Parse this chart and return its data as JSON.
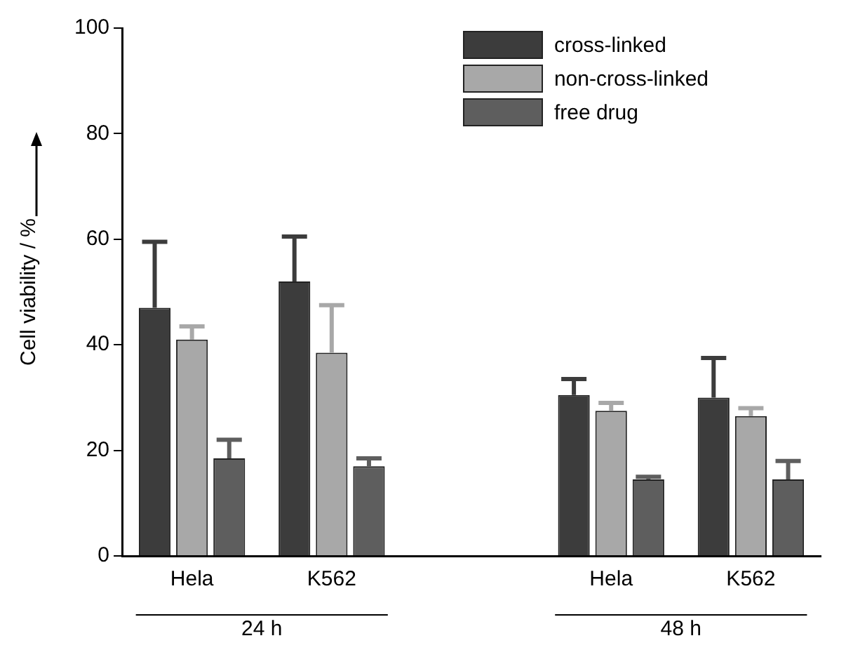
{
  "chart_data": {
    "type": "bar",
    "ylabel": "Cell viability / %",
    "categories": [
      "Hela",
      "K562",
      null,
      "Hela",
      "K562"
    ],
    "series": [
      {
        "name": "cross-linked",
        "color": "#3c3c3c",
        "values": [
          47,
          52,
          null,
          30.5,
          30
        ],
        "errors": [
          [
            47,
            59.5
          ],
          [
            52,
            60.5
          ],
          null,
          [
            30.5,
            33.5
          ],
          [
            30,
            37.5
          ]
        ]
      },
      {
        "name": "non-cross-linked",
        "color": "#a8a8a8",
        "values": [
          41,
          38.5,
          null,
          27.5,
          26.5
        ],
        "errors": [
          [
            41,
            43.5
          ],
          [
            38.5,
            47.5
          ],
          null,
          [
            27.5,
            29
          ],
          [
            26.5,
            28
          ]
        ]
      },
      {
        "name": "free drug",
        "color": "#5e5e5e",
        "values": [
          18.5,
          17,
          null,
          14.5,
          14.5
        ],
        "errors": [
          [
            18.5,
            22
          ],
          [
            17,
            18.5
          ],
          null,
          [
            14.5,
            15
          ],
          [
            14.5,
            18
          ]
        ]
      }
    ],
    "annotations": [
      "24 h",
      "48 h"
    ],
    "ylim": [
      0,
      100
    ],
    "yticks": [
      0,
      20,
      40,
      60,
      80,
      100
    ],
    "grid": false,
    "legend": "top right"
  }
}
